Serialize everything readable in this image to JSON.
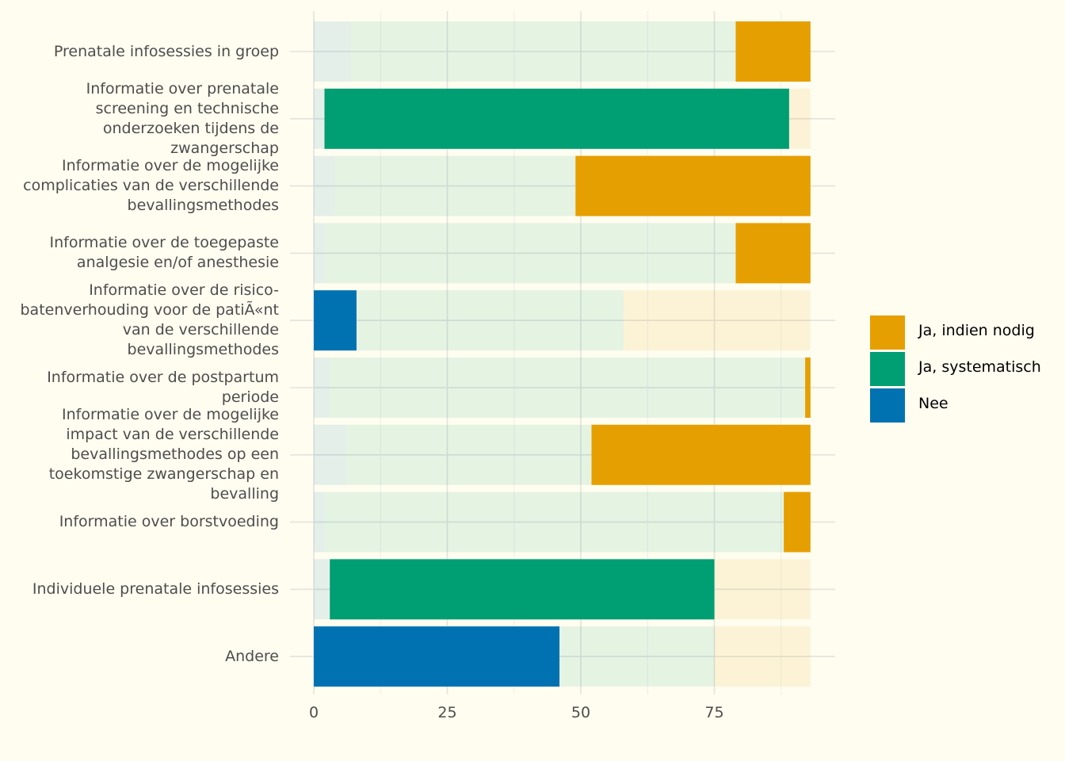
{
  "chart_data": {
    "type": "bar",
    "orientation": "horizontal",
    "stacked": true,
    "categories": [
      "Prenatale infosessies in groep",
      "Informatie over prenatale screening en technische onderzoeken tijdens de zwangerschap",
      "Informatie over de mogelijke complicaties van de verschillende bevallingsmethodes",
      "Informatie over de toegepaste analgesie en/of anesthesie",
      "Informatie over de risico-batenverhouding voor de patiÃ«nt van de verschillende bevallingsmethodes",
      "Informatie over de postpartum periode",
      "Informatie over de mogelijke impact van de verschillende bevallingsmethodes op een toekomstige zwangerschap en bevalling",
      "Informatie over borstvoeding",
      "Individuele prenatale infosessies",
      "Andere"
    ],
    "series": [
      {
        "name": "Nee",
        "color": "#0072b2",
        "values": [
          7,
          2,
          4,
          2,
          8,
          3,
          6,
          2,
          3,
          46
        ]
      },
      {
        "name": "Ja, systematisch",
        "color": "#009e73",
        "values": [
          72,
          87,
          45,
          77,
          50,
          89,
          46,
          86,
          72,
          29
        ]
      },
      {
        "name": "Ja, indien nodig",
        "color": "#e69f00",
        "values": [
          14,
          4,
          44,
          14,
          35,
          1,
          41,
          5,
          18,
          18
        ]
      }
    ],
    "highlight_series": [
      "Ja, indien nodig",
      "Ja, systematisch",
      "Ja, indien nodig",
      "Ja, indien nodig",
      "Nee",
      "Ja, indien nodig",
      "Ja, indien nodig",
      "Ja, indien nodig",
      "Ja, systematisch",
      "Nee"
    ],
    "x_ticks": [
      0,
      25,
      50,
      75
    ],
    "xlim": [
      0,
      97
    ],
    "xlabel": "",
    "ylabel": "",
    "grid": true,
    "legend_position": "right",
    "legend_order": [
      "Ja, indien nodig",
      "Ja, systematisch",
      "Nee"
    ],
    "background": "#fffdf0",
    "faded_opacity": 0.1
  }
}
